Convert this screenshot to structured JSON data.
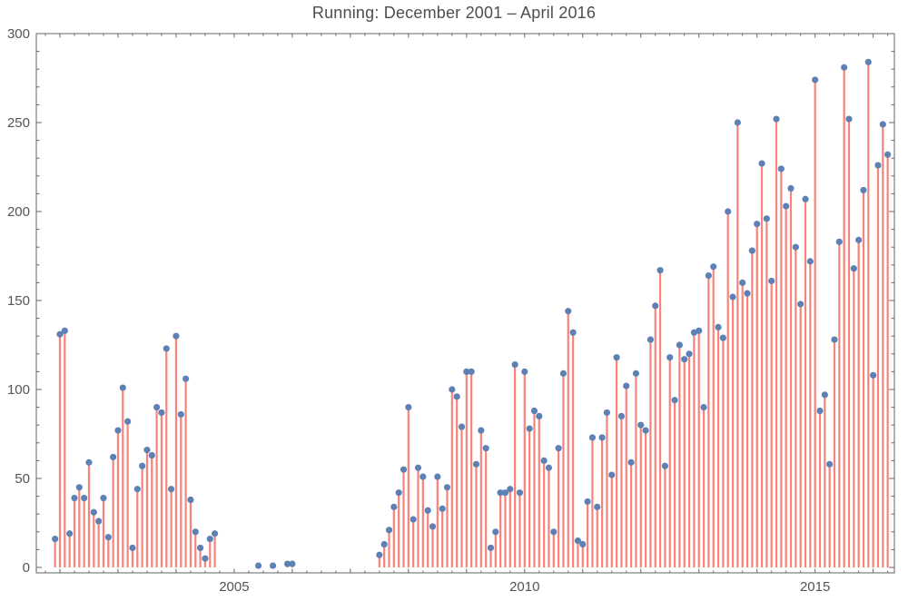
{
  "title": "Running: December 2001 – April 2016",
  "colors": {
    "stem": "#f8837b",
    "point": "#5e81b5",
    "frame": "#666666",
    "tick": "#666666",
    "label": "#555555",
    "title": "#4e4e4e",
    "background": "#ffffff"
  },
  "chart_data": {
    "type": "stem",
    "title": "Running: December 2001 – April 2016",
    "xlabel": "",
    "ylabel": "",
    "legend": null,
    "grid": false,
    "start": {
      "year": 2001,
      "month": 12
    },
    "end": {
      "year": 2016,
      "month": 4
    },
    "ylim": [
      0,
      300
    ],
    "y_major_ticks": [
      0,
      50,
      100,
      150,
      200,
      250,
      300
    ],
    "y_tick_labels": [
      "0",
      "50",
      "100",
      "150",
      "200",
      "250",
      "300"
    ],
    "y_minor_step": 10,
    "xlim_years": [
      2001.594,
      2016.365
    ],
    "x_labeled_years": [
      2005,
      2010,
      2015
    ],
    "x_tick_labels": [
      "2005",
      "2010",
      "2015"
    ],
    "x_minor_step_years": 0.25,
    "values": [
      16,
      131,
      133,
      19,
      39,
      45,
      39,
      59,
      31,
      26,
      39,
      17,
      62,
      77,
      101,
      82,
      11,
      44,
      57,
      66,
      63,
      90,
      87,
      123,
      44,
      130,
      86,
      106,
      38,
      20,
      11,
      5,
      16,
      19,
      0,
      0,
      0,
      0,
      0,
      0,
      0,
      0,
      1,
      0,
      0,
      1,
      0,
      0,
      2,
      2,
      0,
      0,
      0,
      0,
      0,
      0,
      0,
      0,
      0,
      0,
      0,
      0,
      0,
      0,
      0,
      0,
      0,
      7,
      13,
      21,
      34,
      42,
      55,
      90,
      27,
      56,
      51,
      32,
      23,
      51,
      33,
      45,
      100,
      96,
      79,
      110,
      110,
      58,
      77,
      67,
      11,
      20,
      42,
      42,
      44,
      114,
      42,
      110,
      78,
      88,
      85,
      60,
      56,
      20,
      67,
      109,
      144,
      132,
      15,
      13,
      37,
      73,
      34,
      73,
      87,
      52,
      118,
      85,
      102,
      59,
      109,
      80,
      77,
      128,
      147,
      167,
      57,
      118,
      94,
      125,
      117,
      120,
      132,
      133,
      90,
      164,
      169,
      135,
      129,
      200,
      152,
      250,
      160,
      154,
      178,
      193,
      227,
      196,
      161,
      252,
      224,
      203,
      213,
      180,
      148,
      207,
      172,
      274,
      88,
      97,
      58,
      128,
      183,
      281,
      252,
      168,
      184,
      212,
      284,
      108,
      226,
      249,
      232
    ]
  }
}
